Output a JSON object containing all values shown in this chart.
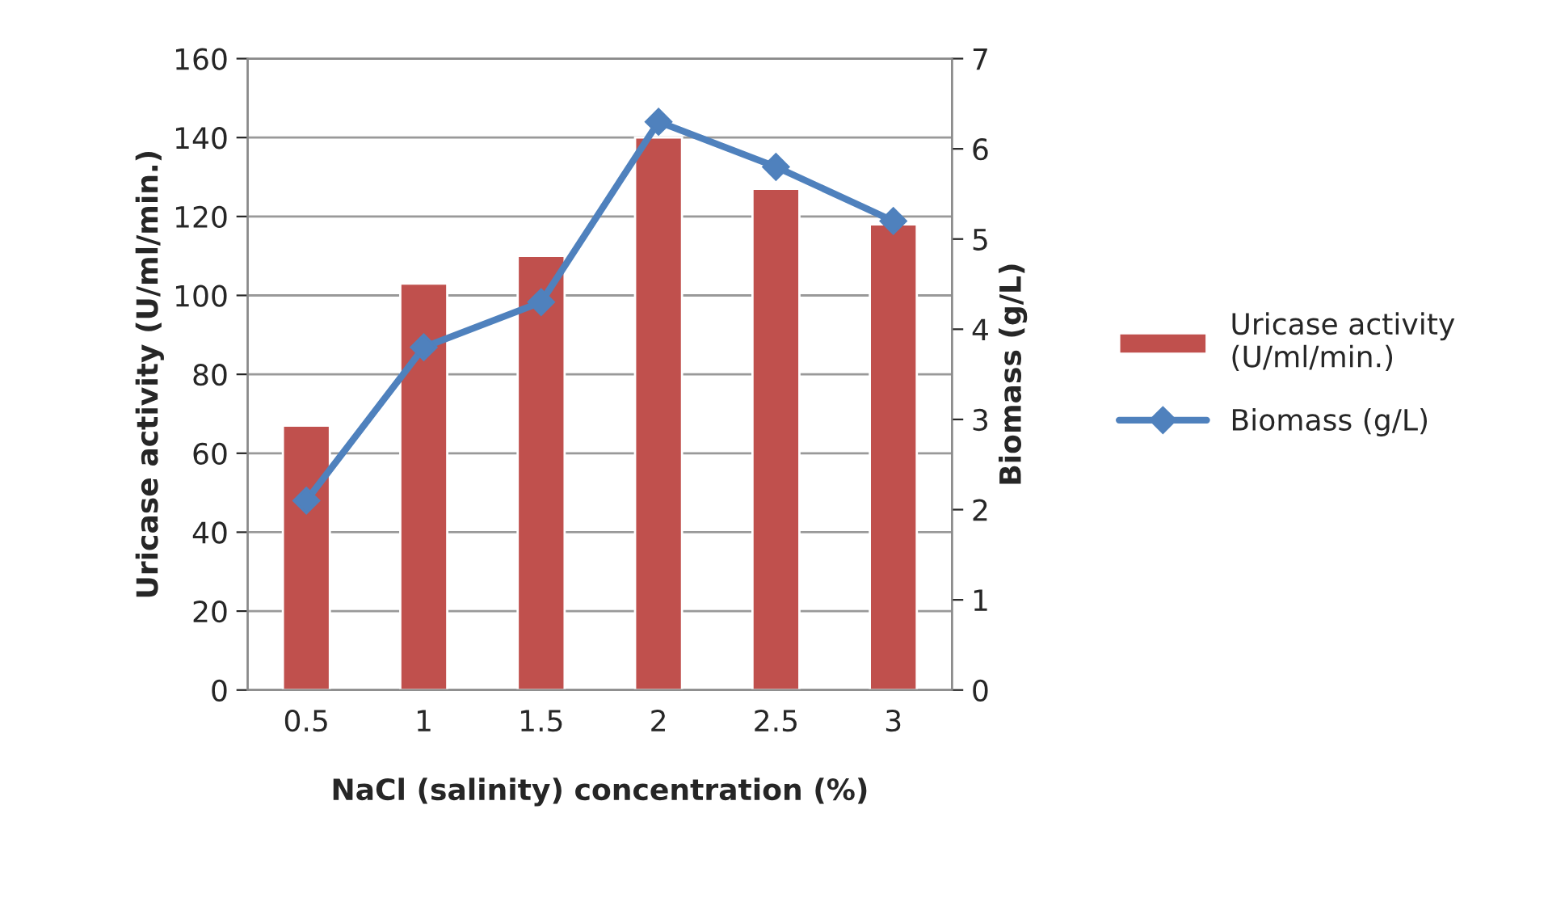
{
  "chart_data": {
    "type": "bar",
    "xlabel": "NaCl (salinity) concentration (%)",
    "ylabel": "Uricase activity (U/ml/min.)",
    "y2label": "Biomass (g/L)",
    "categories": [
      "0.5",
      "1",
      "1.5",
      "2",
      "2.5",
      "3"
    ],
    "series": [
      {
        "name": "Uricase activity (U/ml/min.)",
        "color": "#c0504d",
        "values": [
          67,
          103,
          110,
          140,
          127,
          118
        ]
      },
      {
        "name": "Biomass (g/L)",
        "type": "line",
        "axis": "y2",
        "color": "#4f81bd",
        "marker": "diamond",
        "values": [
          2.1,
          3.8,
          4.3,
          6.3,
          5.8,
          5.2
        ]
      }
    ],
    "ylim": [
      0,
      160
    ],
    "yticks": [
      0,
      20,
      40,
      60,
      80,
      100,
      120,
      140,
      160
    ],
    "y2lim": [
      0,
      7
    ],
    "y2ticks": [
      0,
      1,
      2,
      3,
      4,
      5,
      6,
      7
    ],
    "grid": "y",
    "legend": "right"
  }
}
